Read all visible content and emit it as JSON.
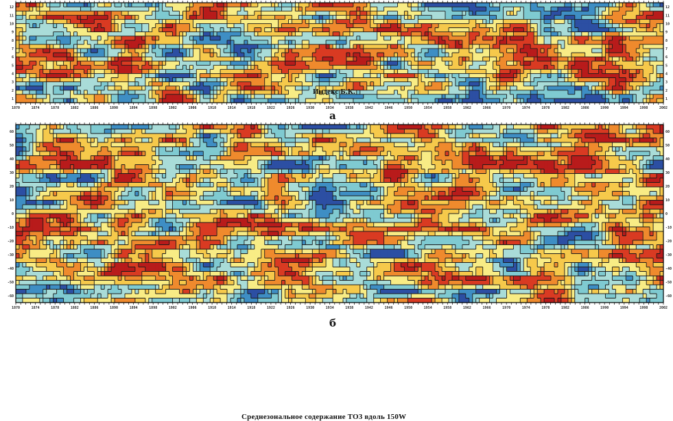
{
  "chart_data": [
    {
      "type": "heatmap",
      "panel_letter": "а",
      "annotation": "Индекс Б.К.",
      "x_tick_labels": [
        "1870",
        "1874",
        "1878",
        "1882",
        "1886",
        "1890",
        "1894",
        "1898",
        "1902",
        "1906",
        "1910",
        "1914",
        "1918",
        "1922",
        "1926",
        "1930",
        "1934",
        "1938",
        "1942",
        "1946",
        "1950",
        "1954",
        "1958",
        "1962",
        "1966",
        "1970",
        "1974",
        "1978",
        "1982",
        "1986",
        "1990",
        "1994",
        "1998",
        "2002"
      ],
      "y_tick_labels": [
        "12",
        "11",
        "10",
        "9",
        "8",
        "7",
        "6",
        "5",
        "4",
        "3",
        "2",
        "1"
      ],
      "color_scale": [
        "#2c4fa3",
        "#3e8ec4",
        "#7fcad1",
        "#a9dcd8",
        "#f8ec85",
        "#f6c94b",
        "#ef8a2d",
        "#d93a22",
        "#b81b1b"
      ],
      "grid": false,
      "legend": "none"
    },
    {
      "type": "heatmap",
      "panel_letter": "б",
      "annotation": "Среднезональное содержание TO3 вдоль 150W",
      "x_tick_labels": [
        "1870",
        "1874",
        "1878",
        "1882",
        "1886",
        "1890",
        "1894",
        "1898",
        "1902",
        "1906",
        "1910",
        "1914",
        "1918",
        "1922",
        "1926",
        "1930",
        "1934",
        "1938",
        "1942",
        "1946",
        "1950",
        "1954",
        "1958",
        "1962",
        "1966",
        "1970",
        "1974",
        "1978",
        "1982",
        "1986",
        "1990",
        "1994",
        "1998",
        "2002"
      ],
      "y_tick_labels": [
        "60",
        "50",
        "40",
        "30",
        "20",
        "10",
        "0",
        "-10",
        "-20",
        "-30",
        "-40",
        "-50",
        "-60"
      ],
      "color_scale": [
        "#2c4fa3",
        "#3e8ec4",
        "#7fcad1",
        "#a9dcd8",
        "#f8ec85",
        "#f6c94b",
        "#ef8a2d",
        "#d93a22",
        "#b81b1b"
      ],
      "grid": false,
      "legend": "none"
    }
  ]
}
